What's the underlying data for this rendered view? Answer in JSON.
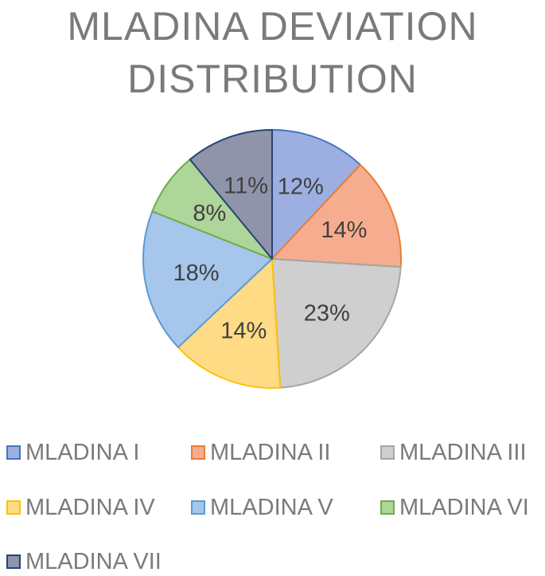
{
  "chart_data": {
    "type": "pie",
    "title": "MLADINA DEVIATION DISTRIBUTION",
    "categories": [
      "MLADINA I",
      "MLADINA II",
      "MLADINA III",
      "MLADINA IV",
      "MLADINA V",
      "MLADINA VI",
      "MLADINA VII"
    ],
    "values": [
      12,
      14,
      23,
      14,
      18,
      8,
      11
    ],
    "data_labels": [
      "12%",
      "14%",
      "23%",
      "14%",
      "18%",
      "8%",
      "11%"
    ],
    "fill_colors": [
      "#9DAFE0",
      "#F6AD8F",
      "#CFCFCF",
      "#FFDB86",
      "#A6C6EC",
      "#AED59A",
      "#8F94AB"
    ],
    "edge_colors": [
      "#4472C4",
      "#ED7D31",
      "#A5A5A5",
      "#FFC000",
      "#5B9BD5",
      "#70AD47",
      "#264478"
    ],
    "legend_position": "bottom"
  }
}
